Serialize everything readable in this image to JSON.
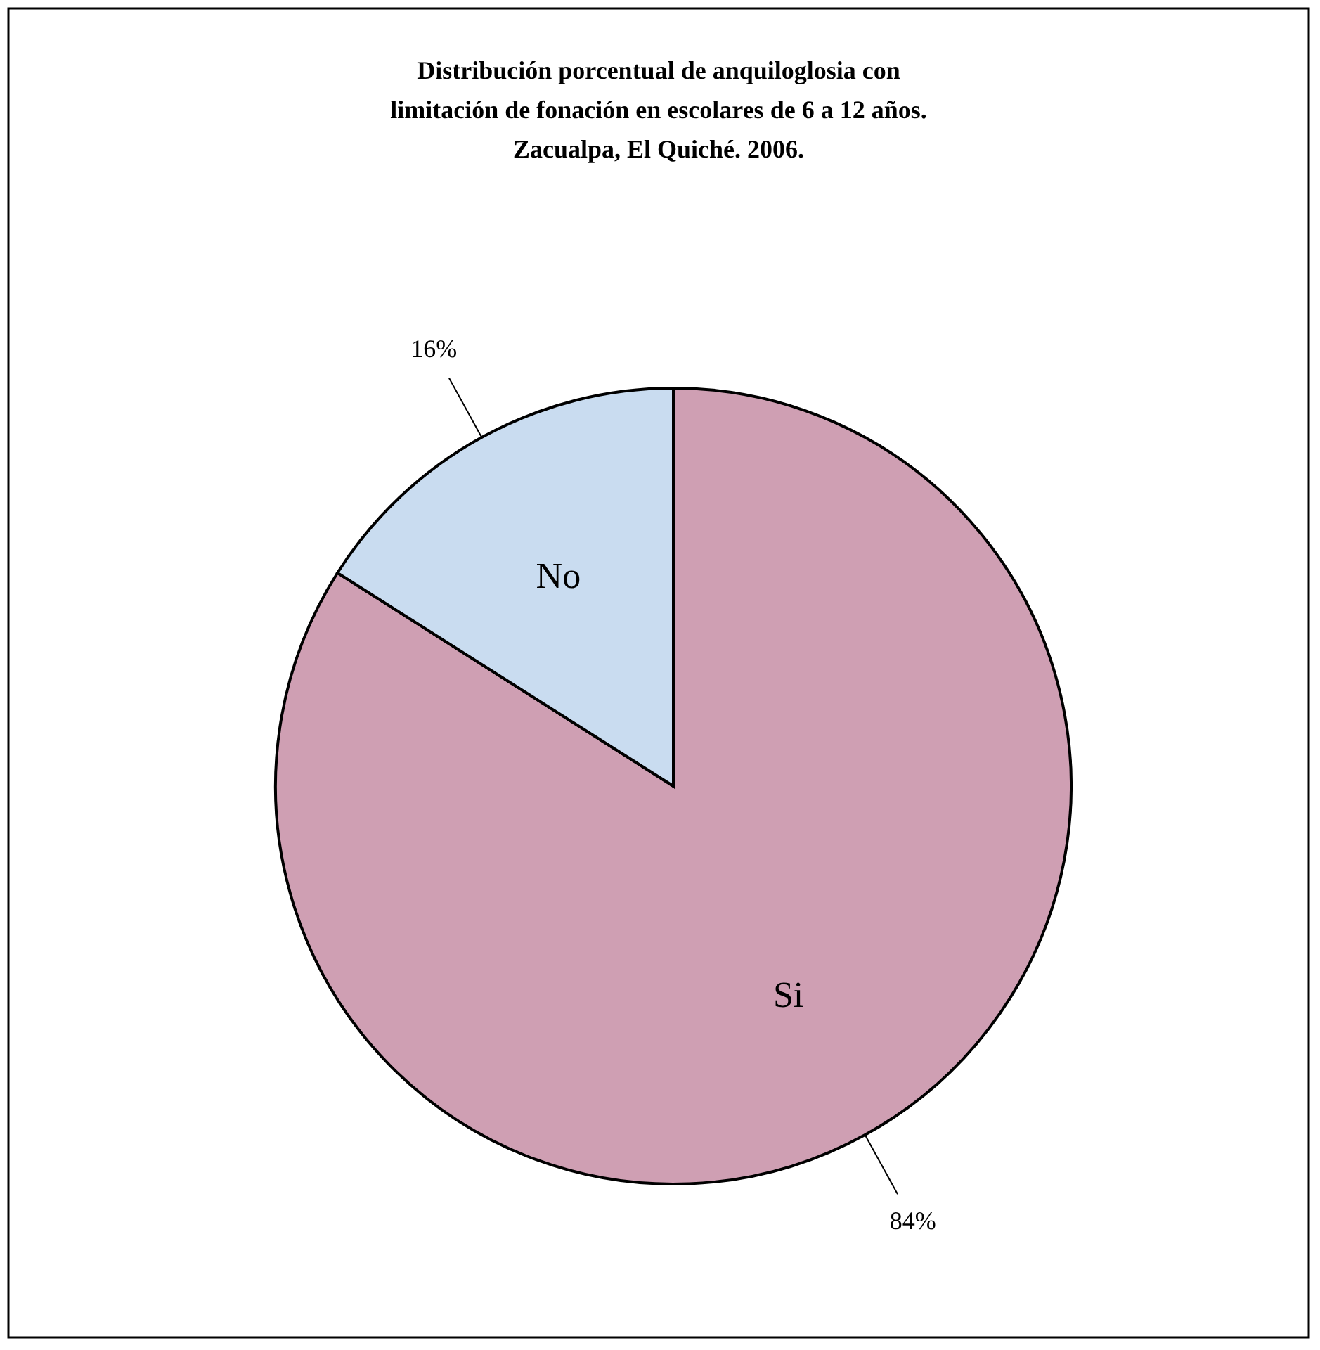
{
  "chart_data": {
    "type": "pie",
    "title": "Distribución porcentual de anquiloglosia con\nlimitación de fonación en escolares de 6 a 12 años.\nZacualpa, El Quiché.  2006.",
    "categories": [
      "Si",
      "No"
    ],
    "values": [
      84,
      16
    ],
    "colors": [
      "#cf9fb3",
      "#c9dcf0"
    ],
    "value_labels": [
      "84%",
      "16%"
    ]
  }
}
